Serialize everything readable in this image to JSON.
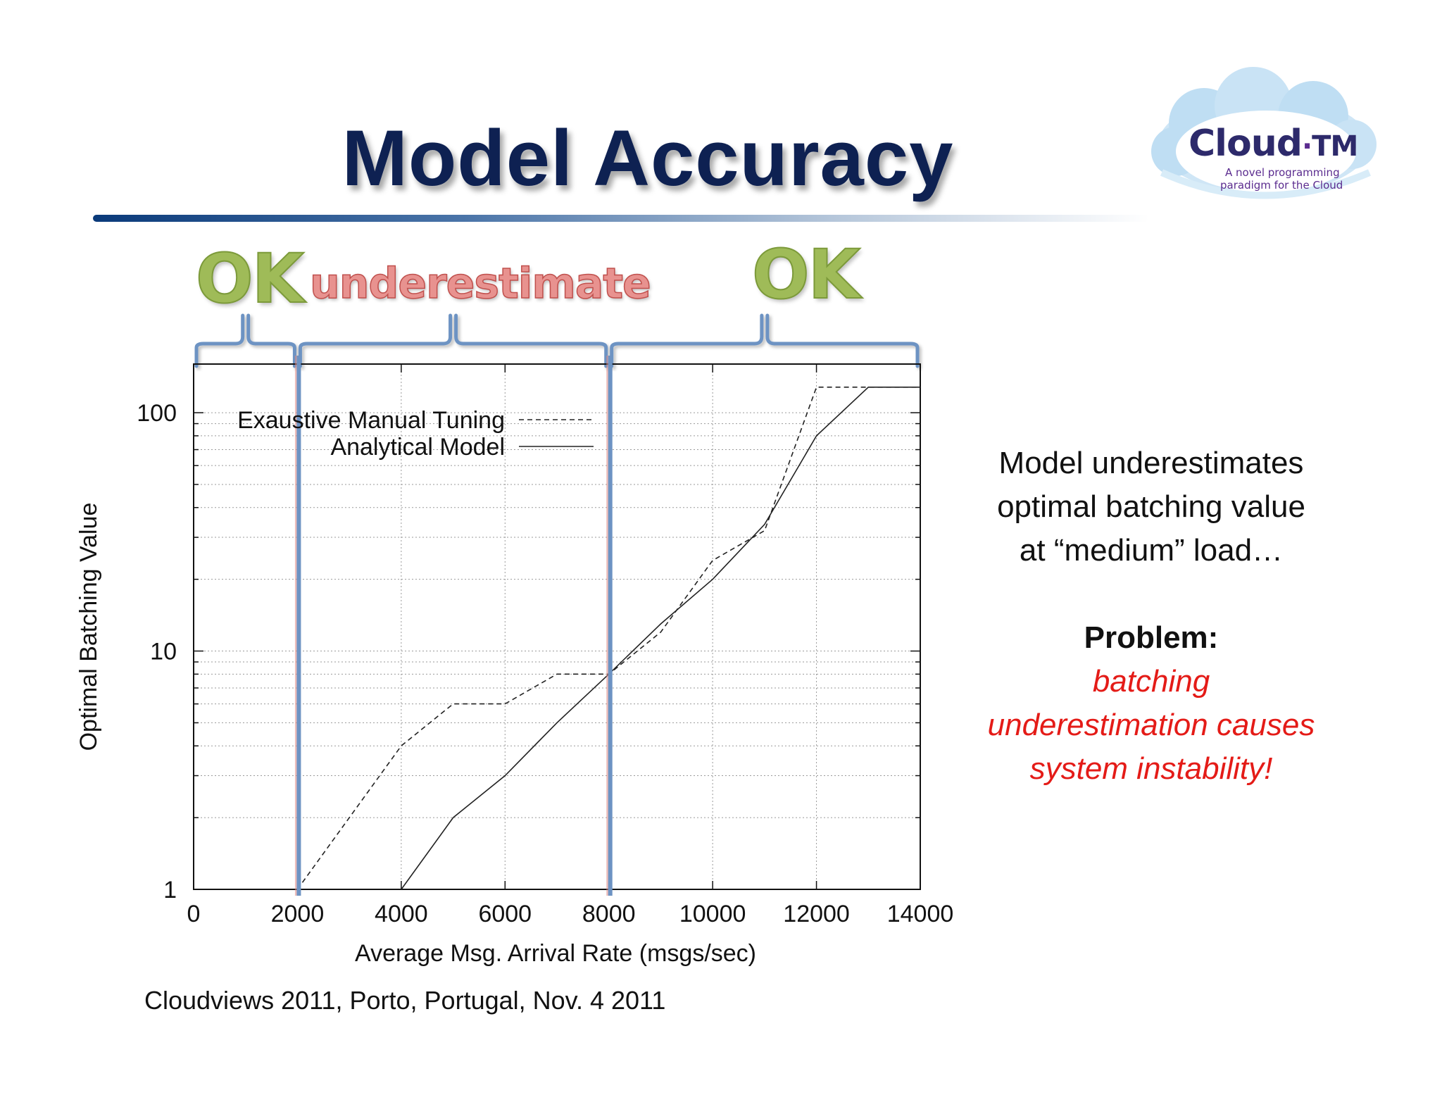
{
  "slide": {
    "title": "Model Accuracy",
    "logo": {
      "brand": "Cloud",
      "brand_suffix": "TM",
      "tagline_line1": "A novel programming",
      "tagline_line2": "paradigm for the Cloud"
    },
    "region_labels": {
      "left": "OK",
      "middle": "underestimate",
      "right": "OK"
    },
    "side_text": {
      "line1": "Model underestimates",
      "line2": "optimal batching value",
      "line3": "at “medium” load…",
      "problem": "Problem:",
      "red1": "batching",
      "red2": "underestimation causes",
      "red3": "system instability!"
    },
    "footer": "Cloudviews 2011, Porto, Portugal, Nov. 4 2011",
    "colors": {
      "title": "#0e2152",
      "bracket": "#6d93c3",
      "ok": "#9fbb58",
      "underestimate": "#e8928f",
      "problem_text": "#e41b17"
    }
  },
  "chart_data": {
    "type": "line",
    "title": "",
    "xlabel": "Average Msg. Arrival Rate (msgs/sec)",
    "ylabel": "Optimal Batching Value",
    "xlim": [
      0,
      14000
    ],
    "ylim": [
      1,
      160
    ],
    "yscale": "log",
    "x_ticks": [
      0,
      2000,
      4000,
      6000,
      8000,
      10000,
      12000,
      14000
    ],
    "y_ticks": [
      1,
      10,
      100
    ],
    "grid": true,
    "legend_position": "top-left",
    "series": [
      {
        "name": "Exaustive Manual Tuning",
        "style": "dashed",
        "x": [
          2000,
          4000,
          5000,
          6000,
          7000,
          8000,
          9000,
          10000,
          11000,
          12000,
          13000,
          14000
        ],
        "y": [
          1,
          4,
          6,
          6,
          8,
          8,
          12,
          24,
          32,
          128,
          128,
          128
        ]
      },
      {
        "name": "Analytical Model",
        "style": "solid",
        "x": [
          4000,
          5000,
          6000,
          7000,
          8000,
          9000,
          10000,
          11000,
          12000,
          13000,
          14000
        ],
        "y": [
          1,
          2,
          3,
          5,
          8,
          13,
          20,
          34,
          80,
          128,
          128
        ]
      }
    ],
    "region_dividers_x": [
      2000,
      8000
    ],
    "regions": [
      {
        "label": "OK",
        "x_range": [
          0,
          2000
        ]
      },
      {
        "label": "underestimate",
        "x_range": [
          2000,
          8000
        ]
      },
      {
        "label": "OK",
        "x_range": [
          8000,
          14000
        ]
      }
    ]
  }
}
